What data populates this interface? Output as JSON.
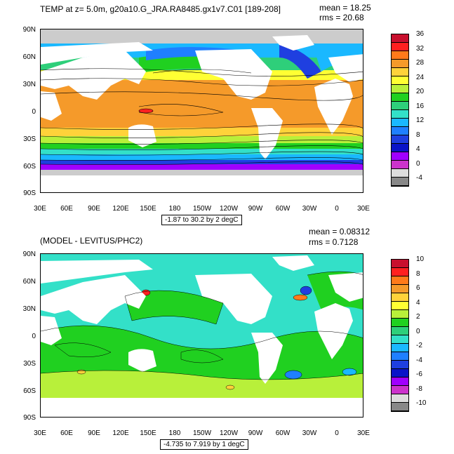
{
  "top": {
    "title": "TEMP at z=   5.0m, g20a10.G_JRA.RA8485.gx1v7.C01 [189-208]",
    "mean": "mean = 18.25",
    "rms": "rms = 20.68",
    "range": "-1.87 to 30.2 by 2 degC",
    "colorbar": {
      "labels": [
        "36",
        "32",
        "28",
        "24",
        "20",
        "16",
        "12",
        "8",
        "4",
        "0",
        "-4"
      ],
      "colors": [
        "#c8102e",
        "#ff2020",
        "#ff7a1a",
        "#f59a2a",
        "#ffd23a",
        "#ffff33",
        "#b8f03a",
        "#20d020",
        "#2ecf7a",
        "#33e0c8",
        "#1ab8ff",
        "#1f7fff",
        "#1f3fe0",
        "#0a14c8",
        "#a000ff",
        "#cc33cc",
        "#dddddd",
        "#888888"
      ]
    }
  },
  "bottom": {
    "title": "(MODEL - LEVITUS/PHC2)",
    "mean": "mean = 0.08312",
    "rms": "rms = 0.7128",
    "range": "-4.735 to 7.919 by 1 degC",
    "colorbar": {
      "labels": [
        "10",
        "8",
        "6",
        "4",
        "2",
        "0",
        "-2",
        "-4",
        "-6",
        "-8",
        "-10"
      ],
      "colors": [
        "#c8102e",
        "#ff2020",
        "#ff7a1a",
        "#f59a2a",
        "#ffd23a",
        "#ffff33",
        "#b8f03a",
        "#20d020",
        "#2ecf7a",
        "#33e0c8",
        "#1ab8ff",
        "#1f7fff",
        "#1f3fe0",
        "#0a14c8",
        "#a000ff",
        "#cc33cc",
        "#dddddd",
        "#888888"
      ]
    }
  },
  "lat_labels": [
    "90N",
    "60N",
    "30N",
    "0",
    "30S",
    "60S",
    "90S"
  ],
  "lon_labels": [
    "30E",
    "60E",
    "90E",
    "120E",
    "150E",
    "180",
    "150W",
    "120W",
    "90W",
    "60W",
    "30W",
    "0",
    "30E"
  ]
}
